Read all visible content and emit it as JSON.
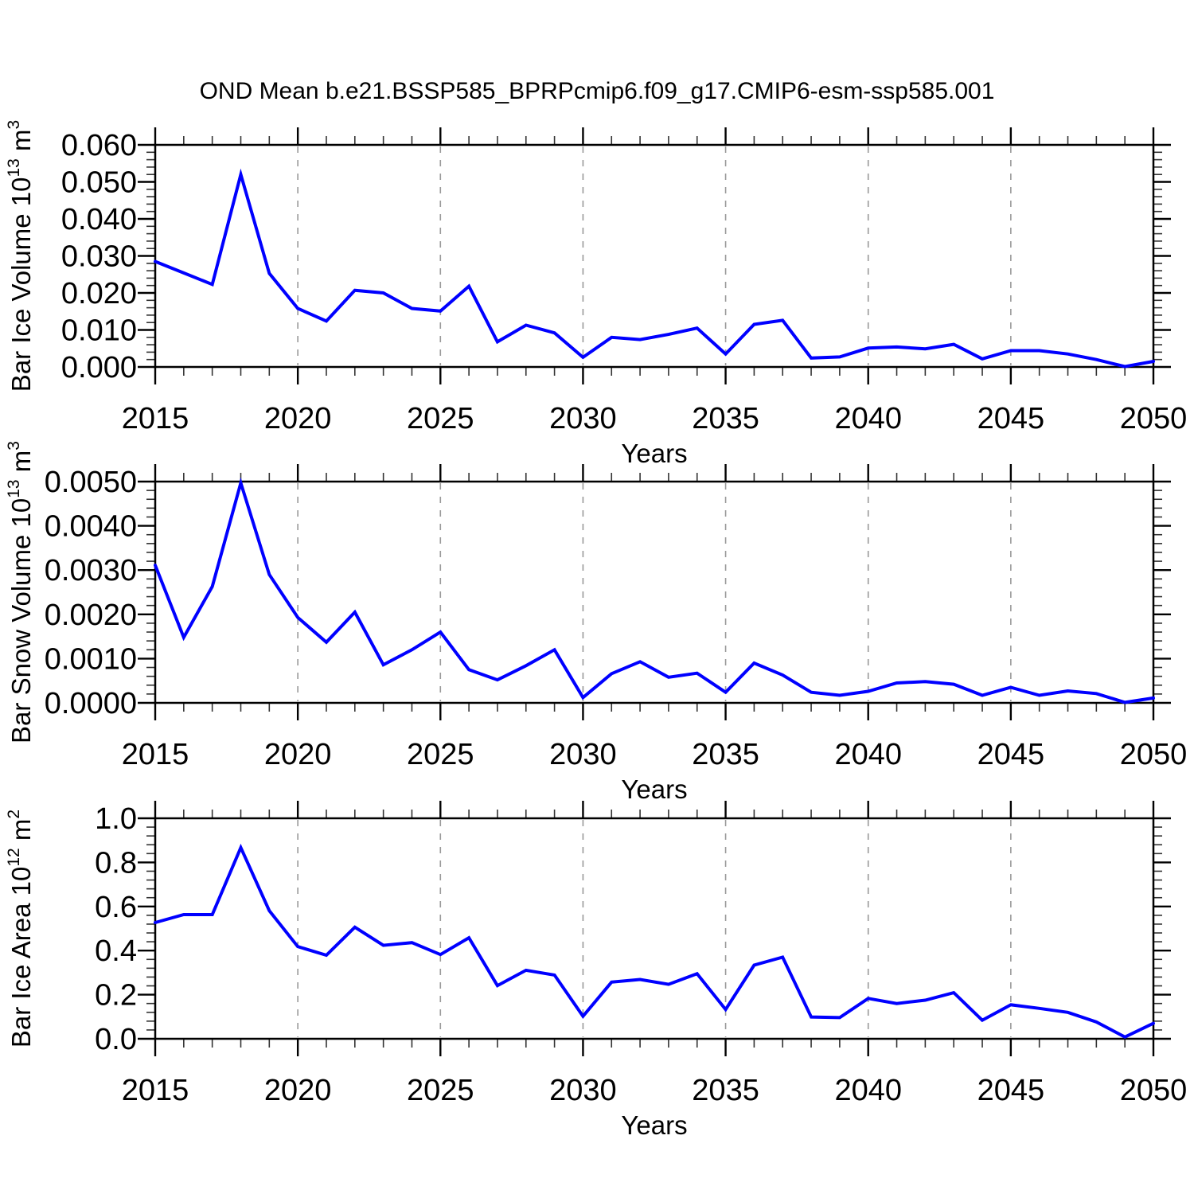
{
  "title": "OND Mean b.e21.BSSP585_BPRPcmip6.f09_g17.CMIP6-esm-ssp585.001",
  "colors": {
    "line": "#0000ff",
    "axis": "#000000",
    "minor_tick": "#333333",
    "grid": "#999999",
    "background": "#ffffff"
  },
  "x_axis": {
    "label": "Years",
    "range": [
      2015,
      2050
    ],
    "years": [
      2015,
      2016,
      2017,
      2018,
      2019,
      2020,
      2021,
      2022,
      2023,
      2024,
      2025,
      2026,
      2027,
      2028,
      2029,
      2030,
      2031,
      2032,
      2033,
      2034,
      2035,
      2036,
      2037,
      2038,
      2039,
      2040,
      2041,
      2042,
      2043,
      2044,
      2045,
      2046,
      2047,
      2048,
      2049,
      2050
    ],
    "tick_years": [
      2015,
      2020,
      2025,
      2030,
      2035,
      2040,
      2045,
      2050
    ],
    "tick_labels": [
      "2015",
      "2020",
      "2025",
      "2030",
      "2035",
      "2040",
      "2045",
      "2050"
    ],
    "minor_step": 1,
    "grid_years": [
      2020,
      2025,
      2030,
      2035,
      2040,
      2045
    ]
  },
  "chart_data": [
    {
      "id": "ice-volume",
      "type": "line",
      "series_name": "Bar Ice Volume",
      "ylabel_text": "Bar Ice Volume 10^13 m^3",
      "ylabel_parts": [
        {
          "t": "Bar Ice Volume 10"
        },
        {
          "t": "13",
          "sup": true
        },
        {
          "t": " m"
        },
        {
          "t": "3",
          "sup": true
        }
      ],
      "ylim": [
        0,
        0.06
      ],
      "yticks": [
        0,
        0.01,
        0.02,
        0.03,
        0.04,
        0.05,
        0.06
      ],
      "ytick_labels": [
        "0.000",
        "0.010",
        "0.020",
        "0.030",
        "0.040",
        "0.050",
        "0.060"
      ],
      "y_minor_per_major": 5,
      "grid": "vertical-dashed",
      "legend": "none",
      "values": [
        0.0285,
        0.0254,
        0.0223,
        0.052,
        0.0253,
        0.0158,
        0.0124,
        0.0207,
        0.02,
        0.0158,
        0.0151,
        0.0218,
        0.0068,
        0.0113,
        0.0092,
        0.0026,
        0.008,
        0.0074,
        0.0088,
        0.0105,
        0.0035,
        0.0115,
        0.0126,
        0.0024,
        0.0027,
        0.0051,
        0.0054,
        0.0049,
        0.0061,
        0.0022,
        0.0044,
        0.0044,
        0.0035,
        0.002,
        0.0001,
        0.0015
      ]
    },
    {
      "id": "snow-volume",
      "type": "line",
      "series_name": "Bar Snow Volume",
      "ylabel_text": "Bar Snow Volume 10^13 m^3",
      "ylabel_parts": [
        {
          "t": "Bar Snow Volume 10"
        },
        {
          "t": "13",
          "sup": true
        },
        {
          "t": " m"
        },
        {
          "t": "3",
          "sup": true
        }
      ],
      "ylim": [
        0,
        0.005
      ],
      "yticks": [
        0,
        0.001,
        0.002,
        0.003,
        0.004,
        0.005
      ],
      "ytick_labels": [
        "0.0000",
        "0.0010",
        "0.0020",
        "0.0030",
        "0.0040",
        "0.0050"
      ],
      "y_minor_per_major": 5,
      "grid": "vertical-dashed",
      "legend": "none",
      "values": [
        0.00311,
        0.00148,
        0.00263,
        0.00497,
        0.0029,
        0.00193,
        0.00137,
        0.00205,
        0.00086,
        0.0012,
        0.0016,
        0.00075,
        0.00052,
        0.00084,
        0.0012,
        0.00012,
        0.00066,
        0.00093,
        0.00058,
        0.00067,
        0.00024,
        0.0009,
        0.00063,
        0.00024,
        0.00017,
        0.00026,
        0.00045,
        0.00048,
        0.00042,
        0.00017,
        0.00035,
        0.00017,
        0.00027,
        0.00021,
        1e-05,
        0.00011
      ]
    },
    {
      "id": "ice-area",
      "type": "line",
      "series_name": "Bar Ice Area",
      "ylabel_text": "Bar Ice Area 10^12 m^2",
      "ylabel_parts": [
        {
          "t": "Bar Ice Area 10"
        },
        {
          "t": "12",
          "sup": true
        },
        {
          "t": " m"
        },
        {
          "t": "2",
          "sup": true
        }
      ],
      "ylim": [
        0,
        1.0
      ],
      "yticks": [
        0,
        0.2,
        0.4,
        0.6,
        0.8,
        1.0
      ],
      "ytick_labels": [
        "0.0",
        "0.2",
        "0.4",
        "0.6",
        "0.8",
        "1.0"
      ],
      "y_minor_per_major": 5,
      "grid": "vertical-dashed",
      "legend": "none",
      "values": [
        0.527,
        0.563,
        0.563,
        0.867,
        0.581,
        0.418,
        0.379,
        0.506,
        0.424,
        0.436,
        0.382,
        0.458,
        0.241,
        0.311,
        0.289,
        0.102,
        0.257,
        0.269,
        0.247,
        0.295,
        0.133,
        0.334,
        0.37,
        0.099,
        0.096,
        0.183,
        0.16,
        0.175,
        0.209,
        0.084,
        0.154,
        0.138,
        0.12,
        0.076,
        0.008,
        0.07
      ]
    }
  ]
}
